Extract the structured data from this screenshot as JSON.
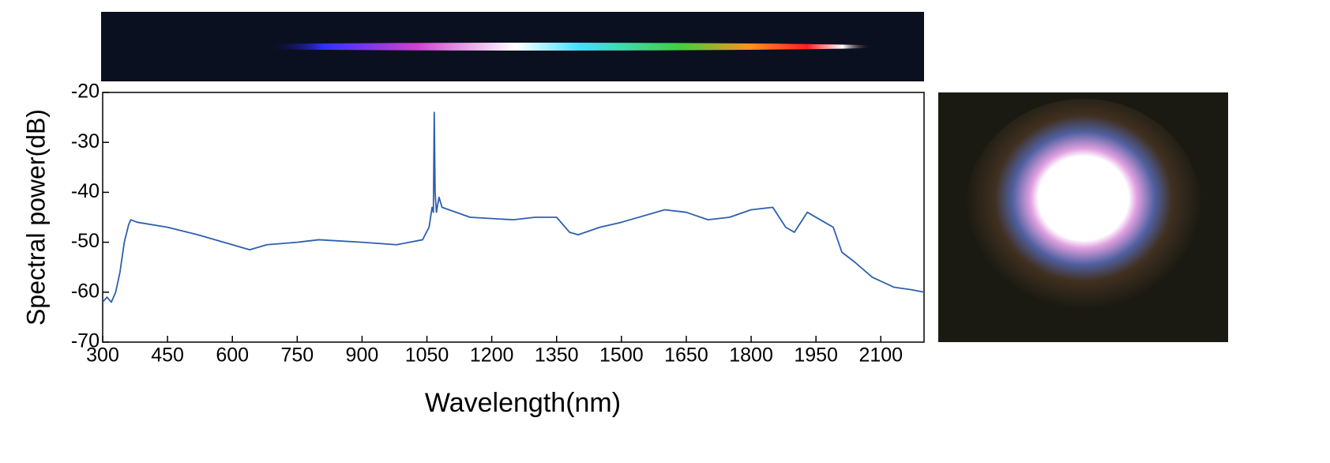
{
  "chart_data": {
    "type": "line",
    "x_label": "Wavelength(nm)",
    "y_label": "Spectral power(dB)",
    "x": [
      300,
      310,
      320,
      330,
      340,
      350,
      360,
      365,
      380,
      450,
      520,
      600,
      640,
      680,
      750,
      800,
      900,
      980,
      1040,
      1055,
      1062,
      1065,
      1067,
      1069,
      1072,
      1078,
      1085,
      1150,
      1250,
      1300,
      1350,
      1380,
      1400,
      1450,
      1500,
      1600,
      1650,
      1700,
      1750,
      1800,
      1850,
      1880,
      1900,
      1930,
      1960,
      1990,
      2010,
      2040,
      2080,
      2130,
      2170,
      2200
    ],
    "series": [
      {
        "color": "#2e5fae",
        "values": [
          -62,
          -61,
          -62,
          -60,
          -56,
          -50,
          -46.5,
          -45.5,
          -46,
          -47,
          -48.5,
          -50.5,
          -51.5,
          -50.5,
          -50,
          -49.5,
          -50,
          -50.5,
          -49.5,
          -47,
          -43,
          -44,
          -24,
          -40,
          -44,
          -41,
          -43,
          -45,
          -45.5,
          -45,
          -45,
          -48,
          -48.5,
          -47,
          -46,
          -43.5,
          -44,
          -45.5,
          -45,
          -43.5,
          -43,
          -47,
          -48,
          -44,
          -45.5,
          -47,
          -52,
          -54,
          -57,
          -59,
          -59.5,
          -60
        ]
      }
    ],
    "xlim": [
      300,
      2200
    ],
    "ylim": [
      -70,
      -20
    ],
    "xticks": [
      300,
      450,
      600,
      750,
      900,
      1050,
      1200,
      1350,
      1500,
      1650,
      1800,
      1950,
      2100
    ],
    "yticks": [
      -20,
      -30,
      -40,
      -50,
      -60,
      -70
    ]
  }
}
